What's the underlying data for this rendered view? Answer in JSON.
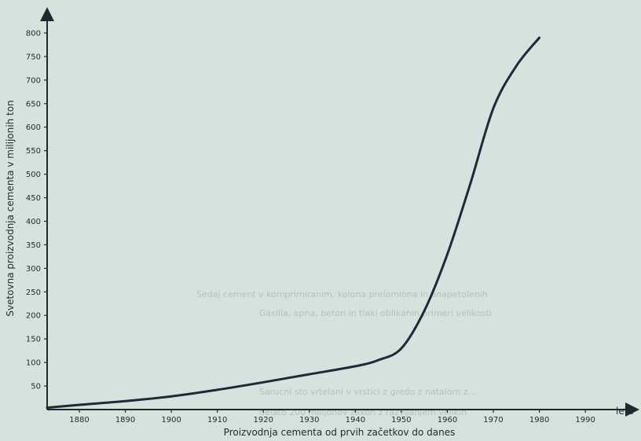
{
  "chart_data": {
    "type": "line",
    "xlabel": "Proizvodnja cementa od prvih začetkov do danes",
    "ylabel": "Svetovna proizvodnja cementa v milijonih ton",
    "x_unit": "leta",
    "xlim": [
      1873,
      1998
    ],
    "ylim": [
      0,
      820
    ],
    "x_ticks": [
      1880,
      1890,
      1900,
      1910,
      1920,
      1930,
      1940,
      1950,
      1960,
      1970,
      1980,
      1990
    ],
    "y_ticks": [
      50,
      100,
      150,
      200,
      250,
      300,
      350,
      400,
      450,
      500,
      550,
      600,
      650,
      700,
      750,
      800
    ],
    "grid": false,
    "series": [
      {
        "color": "#1f2a38",
        "x": [
          1873,
          1880,
          1890,
          1900,
          1910,
          1920,
          1930,
          1940,
          1945,
          1950,
          1955,
          1960,
          1965,
          1970,
          1975,
          1980
        ],
        "y": [
          4,
          10,
          18,
          28,
          42,
          58,
          75,
          92,
          105,
          130,
          210,
          330,
          480,
          640,
          730,
          790
        ]
      }
    ]
  },
  "background_text": [
    "Sedaj cement v komprimiranim, kolona prelomiona in anapetolenih",
    "Gasilla, apna, beton in tlaki oblikanin primeri velikosti",
    "Sarucni sto vrtelani v vrstici z gredo z natalom z...",
    "delato 200 milijonov zakon z razvijanjem velikih"
  ]
}
